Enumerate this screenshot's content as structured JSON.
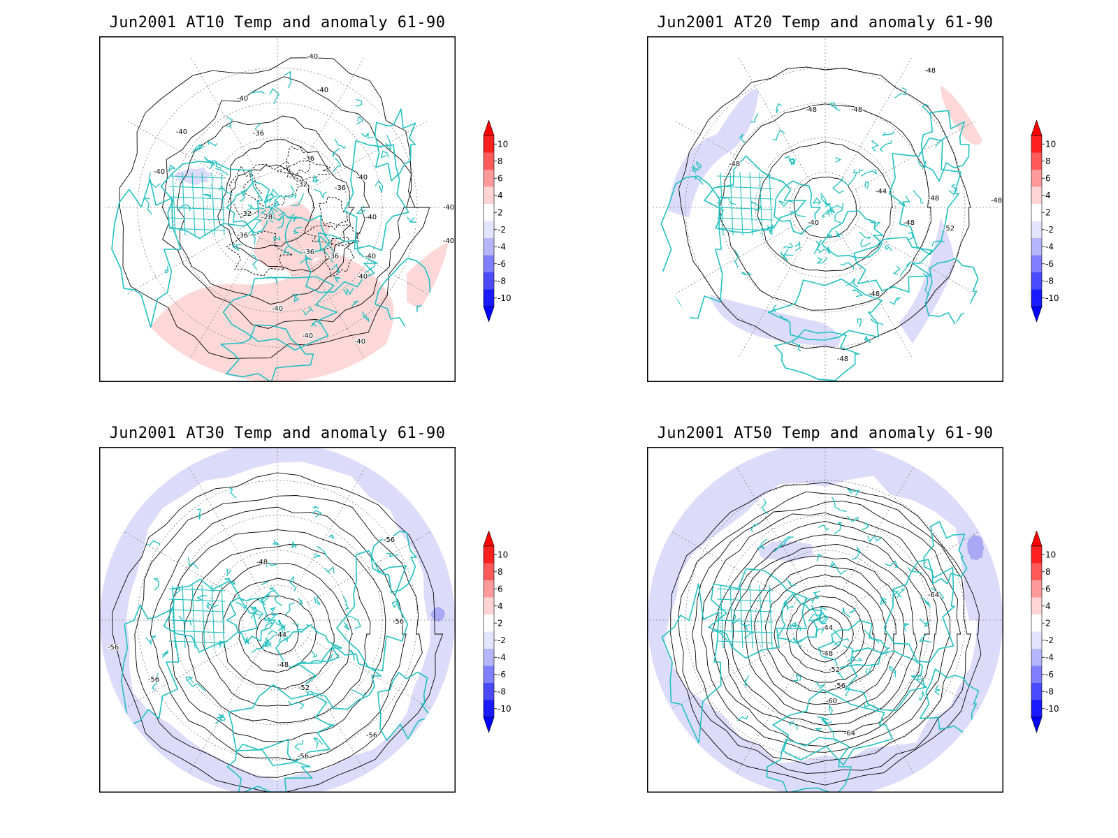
{
  "panels": [
    {
      "id": "at10",
      "title": "Jun2001 AT10 Temp and anomaly 61-90",
      "contour_labels": [
        "-40",
        "-40",
        "-40",
        "-40",
        "-40",
        "-36",
        "-36",
        "-36",
        "-32",
        "-32",
        "-28",
        "-36",
        "-40",
        "-40",
        "-40",
        "-36",
        "-36",
        "-40",
        "-40",
        "-40",
        "-40",
        "-40",
        "-40"
      ],
      "anomaly_patches": [
        {
          "sign": "positive",
          "level": "2 to 4"
        },
        {
          "sign": "negative",
          "level": "-2 to -4"
        }
      ]
    },
    {
      "id": "at20",
      "title": "Jun2001 AT20 Temp and anomaly 61-90",
      "contour_labels": [
        "-48",
        "-48",
        "-48",
        "-48",
        "-48",
        "-44",
        "-40",
        "-48",
        "-52",
        "-48",
        "-48",
        "-48"
      ],
      "anomaly_patches": [
        {
          "sign": "positive",
          "level": "2 to 4"
        },
        {
          "sign": "negative",
          "level": "-2 to -4"
        }
      ]
    },
    {
      "id": "at30",
      "title": "Jun2001 AT30 Temp and anomaly 61-90",
      "contour_labels": [
        "-56",
        "-48",
        "-44",
        "-48",
        "-52",
        "-56",
        "-56",
        "-56",
        "-56",
        "-56"
      ],
      "anomaly_patches": [
        {
          "sign": "negative",
          "level": "-2 to -4"
        }
      ]
    },
    {
      "id": "at50",
      "title": "Jun2001 AT50 Temp and anomaly 61-90",
      "contour_labels": [
        "-44",
        "-48",
        "-52",
        "-56",
        "-60",
        "-64",
        "-64"
      ],
      "anomaly_patches": [
        {
          "sign": "negative",
          "level": "-2 to -4"
        }
      ]
    }
  ],
  "colorbar": {
    "ticks": [
      "10",
      "8",
      "6",
      "4",
      "2",
      "-2",
      "-4",
      "-6",
      "-8",
      "-10"
    ],
    "colors": [
      "#ff0000",
      "#ff4040",
      "#ff8080",
      "#ffc0c0",
      "#ffffff",
      "#ffffff",
      "#dcdcff",
      "#a0a0ff",
      "#6060ff",
      "#2020ff",
      "#0000ff"
    ],
    "positive_tip": "#ff0000",
    "negative_tip": "#0000ff"
  },
  "styles": {
    "coastline_color": "#20c0c0",
    "contour_color": "#000000",
    "gridline_color": "#808080",
    "pos_anomaly_color": "#fcd8d8",
    "neg_anomaly_color": "#dcdcfa"
  }
}
